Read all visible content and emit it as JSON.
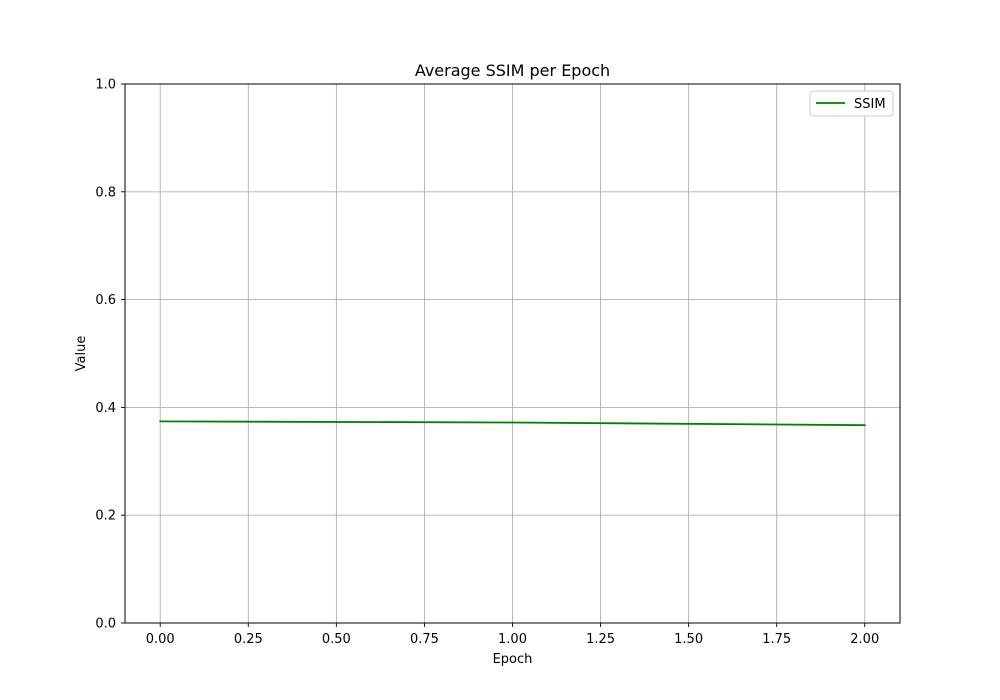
{
  "chart_data": {
    "type": "line",
    "title": "Average SSIM per Epoch",
    "xlabel": "Epoch",
    "ylabel": "Value",
    "xlim": [
      -0.1,
      2.1
    ],
    "ylim": [
      0.0,
      1.0
    ],
    "xticks": [
      0.0,
      0.25,
      0.5,
      0.75,
      1.0,
      1.25,
      1.5,
      1.75,
      2.0
    ],
    "xtick_labels": [
      "0.00",
      "0.25",
      "0.50",
      "0.75",
      "1.00",
      "1.25",
      "1.50",
      "1.75",
      "2.00"
    ],
    "yticks": [
      0.0,
      0.2,
      0.4,
      0.6,
      0.8,
      1.0
    ],
    "ytick_labels": [
      "0.0",
      "0.2",
      "0.4",
      "0.6",
      "0.8",
      "1.0"
    ],
    "grid": true,
    "legend_position": "top-right",
    "series": [
      {
        "name": "SSIM",
        "color": "#008000",
        "x": [
          0,
          1,
          2
        ],
        "y": [
          0.374,
          0.372,
          0.367
        ]
      }
    ]
  }
}
